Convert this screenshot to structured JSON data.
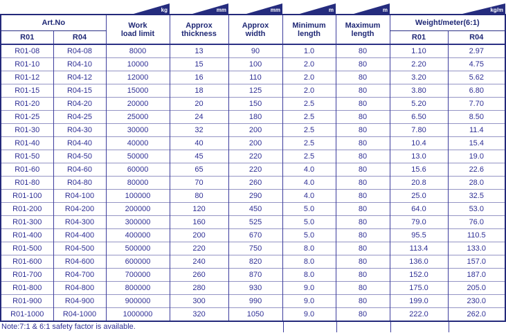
{
  "table": {
    "unit_flags": [
      "kg",
      "mm",
      "mm",
      "m",
      "m",
      "kg/m"
    ],
    "header": {
      "art_no": "Art.No",
      "r01": "R01",
      "r04": "R04",
      "work_load_limit": "Work\nload limit",
      "approx_thickness": "Approx\nthickness",
      "approx_width": "Approx\nwidth",
      "minimum_length": "Minimum\nlength",
      "maximum_length": "Maximum\nlength",
      "weight_meter": "Weight/meter(6:1)",
      "weight_r01": "R01",
      "weight_r04": "R04"
    },
    "rows": [
      [
        "R01-08",
        "R04-08",
        "8000",
        "13",
        "90",
        "1.0",
        "80",
        "1.10",
        "2.97"
      ],
      [
        "R01-10",
        "R04-10",
        "10000",
        "15",
        "100",
        "2.0",
        "80",
        "2.20",
        "4.75"
      ],
      [
        "R01-12",
        "R04-12",
        "12000",
        "16",
        "110",
        "2.0",
        "80",
        "3.20",
        "5.62"
      ],
      [
        "R01-15",
        "R04-15",
        "15000",
        "18",
        "125",
        "2.0",
        "80",
        "3.80",
        "6.80"
      ],
      [
        "R01-20",
        "R04-20",
        "20000",
        "20",
        "150",
        "2.5",
        "80",
        "5.20",
        "7.70"
      ],
      [
        "R01-25",
        "R04-25",
        "25000",
        "24",
        "180",
        "2.5",
        "80",
        "6.50",
        "8.50"
      ],
      [
        "R01-30",
        "R04-30",
        "30000",
        "32",
        "200",
        "2.5",
        "80",
        "7.80",
        "11.4"
      ],
      [
        "R01-40",
        "R04-40",
        "40000",
        "40",
        "200",
        "2.5",
        "80",
        "10.4",
        "15.4"
      ],
      [
        "R01-50",
        "R04-50",
        "50000",
        "45",
        "220",
        "2.5",
        "80",
        "13.0",
        "19.0"
      ],
      [
        "R01-60",
        "R04-60",
        "60000",
        "65",
        "220",
        "4.0",
        "80",
        "15.6",
        "22.6"
      ],
      [
        "R01-80",
        "R04-80",
        "80000",
        "70",
        "260",
        "4.0",
        "80",
        "20.8",
        "28.0"
      ],
      [
        "R01-100",
        "R04-100",
        "100000",
        "80",
        "290",
        "4.0",
        "80",
        "25.0",
        "32.5"
      ],
      [
        "R01-200",
        "R04-200",
        "200000",
        "120",
        "450",
        "5.0",
        "80",
        "64.0",
        "53.0"
      ],
      [
        "R01-300",
        "R04-300",
        "300000",
        "160",
        "525",
        "5.0",
        "80",
        "79.0",
        "76.0"
      ],
      [
        "R01-400",
        "R04-400",
        "400000",
        "200",
        "670",
        "5.0",
        "80",
        "95.5",
        "110.5"
      ],
      [
        "R01-500",
        "R04-500",
        "500000",
        "220",
        "750",
        "8.0",
        "80",
        "113.4",
        "133.0"
      ],
      [
        "R01-600",
        "R04-600",
        "600000",
        "240",
        "820",
        "8.0",
        "80",
        "136.0",
        "157.0"
      ],
      [
        "R01-700",
        "R04-700",
        "700000",
        "260",
        "870",
        "8.0",
        "80",
        "152.0",
        "187.0"
      ],
      [
        "R01-800",
        "R04-800",
        "800000",
        "280",
        "930",
        "9.0",
        "80",
        "175.0",
        "205.0"
      ],
      [
        "R01-900",
        "R04-900",
        "900000",
        "300",
        "990",
        "9.0",
        "80",
        "199.0",
        "230.0"
      ],
      [
        "R01-1000",
        "R04-1000",
        "1000000",
        "320",
        "1050",
        "9.0",
        "80",
        "222.0",
        "262.0"
      ]
    ],
    "note": "Note:7:1 & 6:1 safety factor is available."
  },
  "colors": {
    "navy_dark": "#252c7e",
    "border_vertical": "#3c3c9c",
    "border_row": "#9494c4",
    "text_data": "#2e2e94",
    "text_header": "#1f2875",
    "flag_text": "#ffffff"
  }
}
